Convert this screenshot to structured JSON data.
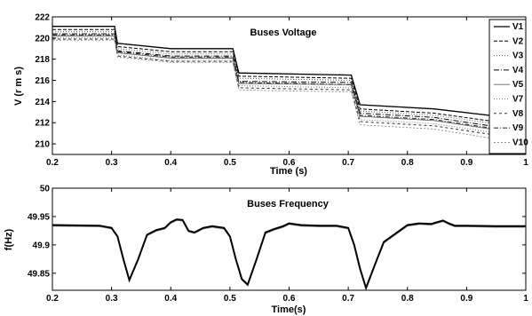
{
  "chart_data": [
    {
      "type": "line",
      "title": "Buses Voltage",
      "xlabel": "Time (s)",
      "ylabel": "V (r m s)",
      "xlim": [
        0.2,
        1.0
      ],
      "ylim": [
        209,
        222
      ],
      "xticks": [
        "0.2",
        "0.3",
        "0.4",
        "0.5",
        "0.6",
        "0.7",
        "0.8",
        "0.9",
        "1"
      ],
      "yticks": [
        "210",
        "212",
        "214",
        "216",
        "218",
        "220",
        "222"
      ],
      "grid": false,
      "legend_position": "right",
      "x_breakpoints": [
        0.2,
        0.305,
        0.31,
        0.4,
        0.505,
        0.515,
        0.705,
        0.72,
        0.845,
        1.0
      ],
      "series": [
        {
          "name": "V1",
          "values": [
            221.1,
            221.1,
            219.5,
            219.0,
            219.0,
            216.7,
            216.5,
            213.7,
            213.3,
            212.3
          ]
        },
        {
          "name": "V2",
          "values": [
            220.8,
            220.8,
            219.2,
            218.7,
            218.7,
            216.4,
            216.2,
            213.3,
            212.9,
            211.7
          ]
        },
        {
          "name": "V3",
          "values": [
            220.6,
            220.6,
            219.0,
            218.5,
            218.5,
            216.2,
            216.0,
            213.1,
            212.7,
            211.5
          ]
        },
        {
          "name": "V4",
          "values": [
            220.4,
            220.4,
            218.8,
            218.3,
            218.3,
            215.9,
            215.8,
            212.9,
            212.5,
            211.2
          ]
        },
        {
          "name": "V5",
          "values": [
            220.2,
            220.2,
            218.6,
            218.1,
            218.1,
            215.7,
            215.6,
            212.6,
            212.2,
            210.9
          ]
        },
        {
          "name": "V7",
          "values": [
            220.0,
            220.0,
            218.4,
            217.9,
            217.9,
            215.5,
            215.3,
            212.3,
            211.9,
            210.6
          ]
        },
        {
          "name": "V8",
          "values": [
            219.9,
            219.9,
            218.3,
            217.8,
            217.8,
            215.3,
            215.1,
            212.1,
            211.7,
            210.4
          ]
        },
        {
          "name": "V9",
          "values": [
            220.3,
            220.3,
            218.7,
            218.2,
            218.2,
            215.8,
            215.6,
            212.7,
            212.3,
            211.0
          ]
        },
        {
          "name": "V10",
          "values": [
            219.8,
            219.8,
            218.2,
            217.7,
            217.7,
            215.1,
            214.9,
            211.8,
            211.4,
            210.0
          ]
        }
      ]
    },
    {
      "type": "line",
      "title": "Buses Frequency",
      "xlabel": "Time(s)",
      "ylabel": "f(Hz)",
      "xlim": [
        0.2,
        1.0
      ],
      "ylim": [
        49.82,
        50.0
      ],
      "xticks": [
        "0.2",
        "0.3",
        "0.4",
        "0.5",
        "0.6",
        "0.7",
        "0.8",
        "0.9",
        "1"
      ],
      "yticks": [
        "49.85",
        "49.9",
        "49.95",
        "50"
      ],
      "grid": false,
      "series": [
        {
          "x": [
            0.2,
            0.28,
            0.3,
            0.31,
            0.32,
            0.33,
            0.345,
            0.36,
            0.375,
            0.39,
            0.4,
            0.41,
            0.42,
            0.43,
            0.44,
            0.455,
            0.47,
            0.49,
            0.5,
            0.51,
            0.52,
            0.53,
            0.545,
            0.56,
            0.575,
            0.59,
            0.6,
            0.62,
            0.65,
            0.68,
            0.7,
            0.71,
            0.72,
            0.73,
            0.745,
            0.76,
            0.78,
            0.8,
            0.82,
            0.84,
            0.85,
            0.86,
            0.87,
            0.88,
            0.9,
            0.95,
            1.0
          ],
          "values": [
            49.935,
            49.934,
            49.93,
            49.915,
            49.875,
            49.838,
            49.875,
            49.918,
            49.926,
            49.93,
            49.94,
            49.945,
            49.944,
            49.925,
            49.922,
            49.93,
            49.933,
            49.93,
            49.915,
            49.875,
            49.84,
            49.83,
            49.875,
            49.922,
            49.928,
            49.933,
            49.938,
            49.935,
            49.934,
            49.934,
            49.93,
            49.9,
            49.858,
            49.824,
            49.865,
            49.905,
            49.92,
            49.935,
            49.938,
            49.937,
            49.94,
            49.943,
            49.938,
            49.934,
            49.934,
            49.933,
            49.933
          ]
        }
      ]
    }
  ]
}
